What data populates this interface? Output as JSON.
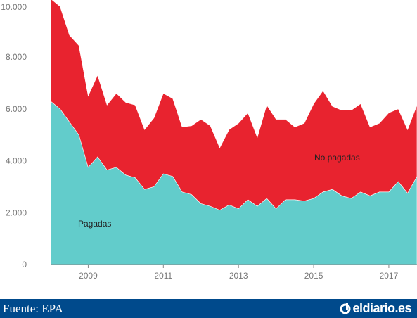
{
  "chart_data": {
    "type": "area",
    "stacked": true,
    "x": [
      2008.0,
      2008.25,
      2008.5,
      2008.75,
      2009.0,
      2009.25,
      2009.5,
      2009.75,
      2010.0,
      2010.25,
      2010.5,
      2010.75,
      2011.0,
      2011.25,
      2011.5,
      2011.75,
      2012.0,
      2012.25,
      2012.5,
      2012.75,
      2013.0,
      2013.25,
      2013.5,
      2013.75,
      2014.0,
      2014.25,
      2014.5,
      2014.75,
      2015.0,
      2015.25,
      2015.5,
      2015.75,
      2016.0,
      2016.25,
      2016.5,
      2016.75,
      2017.0,
      2017.25,
      2017.5,
      2017.75
    ],
    "series": [
      {
        "name": "Pagadas",
        "color": "#62cccb",
        "values": [
          6300,
          6000,
          5500,
          5000,
          3750,
          4150,
          3650,
          3750,
          3450,
          3350,
          2900,
          3000,
          3500,
          3400,
          2800,
          2700,
          2350,
          2250,
          2100,
          2300,
          2150,
          2500,
          2250,
          2550,
          2150,
          2500,
          2500,
          2450,
          2550,
          2800,
          2900,
          2650,
          2550,
          2800,
          2650,
          2800,
          2800,
          3200,
          2750,
          3400
        ]
      },
      {
        "name": "No pagadas",
        "color": "#e8232f",
        "values": [
          3950,
          3950,
          3350,
          3450,
          2750,
          3150,
          2500,
          2850,
          2800,
          2800,
          2300,
          2650,
          3100,
          3000,
          2500,
          2650,
          3250,
          3100,
          2400,
          2900,
          3300,
          3350,
          2650,
          3600,
          3450,
          3100,
          2800,
          3000,
          3650,
          3900,
          3200,
          3300,
          3400,
          3400,
          2650,
          2650,
          3050,
          2800,
          2450,
          2750
        ]
      }
    ],
    "x_ticks": [
      2009,
      2011,
      2013,
      2015,
      2017
    ],
    "y_ticks": [
      0,
      2000,
      4000,
      6000,
      8000,
      10000
    ],
    "x_tick_labels": [
      "2009",
      "2011",
      "2013",
      "2015",
      "2017"
    ],
    "y_tick_labels": [
      "0",
      "2.000",
      "4.000",
      "6.000",
      "8.000",
      "10.000"
    ],
    "area_labels": [
      "Pagadas",
      "No pagadas"
    ],
    "xlim": [
      2008.0,
      2017.75
    ],
    "ylim": [
      0,
      10200
    ],
    "grid": false
  },
  "footer": {
    "source": "Fuente: EPA",
    "brand": "eldiario.es",
    "brand_icon": "eldiario-logo-icon",
    "background": "#004a8c"
  }
}
